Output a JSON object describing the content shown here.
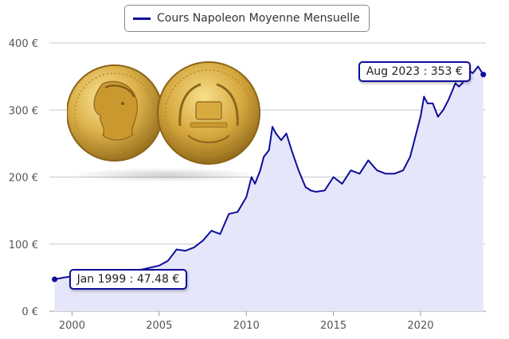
{
  "colors": {
    "line": "#0d0d9a",
    "fill": "#e6e6fb",
    "grid": "#c8c8c8",
    "axis_text": "#555555",
    "gold_light": "#f3d57a",
    "gold_mid": "#d8ac3c",
    "gold_dark": "#9c7420"
  },
  "chart_data": {
    "type": "area",
    "legend": [
      "Cours Napoleon Moyenne Mensuelle"
    ],
    "legend_placement": "top-center",
    "grid": true,
    "xlim": [
      1998.7,
      2023.75
    ],
    "ylim": [
      0,
      400
    ],
    "x_ticks": [
      2000,
      2005,
      2010,
      2015,
      2020
    ],
    "x_tick_labels": [
      "2000",
      "2005",
      "2010",
      "2015",
      "2020"
    ],
    "y_ticks": [
      0,
      100,
      200,
      300,
      400
    ],
    "y_tick_labels": [
      "0 €",
      "100 €",
      "200 €",
      "300 €",
      "400 €"
    ],
    "series": [
      {
        "name": "Cours Napoleon Moyenne Mensuelle",
        "x": [
          1999.0,
          1999.5,
          2000.0,
          2001.0,
          2002.0,
          2003.0,
          2004.0,
          2005.0,
          2005.5,
          2006.0,
          2006.5,
          2007.0,
          2007.5,
          2008.0,
          2008.5,
          2009.0,
          2009.5,
          2010.0,
          2010.3,
          2010.5,
          2010.8,
          2011.0,
          2011.3,
          2011.5,
          2011.7,
          2012.0,
          2012.3,
          2012.6,
          2013.0,
          2013.4,
          2013.7,
          2014.0,
          2014.5,
          2015.0,
          2015.5,
          2016.0,
          2016.5,
          2017.0,
          2017.5,
          2018.0,
          2018.5,
          2019.0,
          2019.4,
          2019.7,
          2020.0,
          2020.2,
          2020.4,
          2020.7,
          2021.0,
          2021.3,
          2021.6,
          2022.0,
          2022.2,
          2022.4,
          2022.7,
          2023.0,
          2023.3,
          2023.6
        ],
        "y": [
          47.48,
          50,
          52,
          55,
          57,
          60,
          62,
          68,
          75,
          92,
          90,
          95,
          105,
          120,
          115,
          145,
          148,
          170,
          200,
          190,
          210,
          230,
          240,
          275,
          265,
          255,
          265,
          240,
          210,
          185,
          180,
          178,
          180,
          200,
          190,
          210,
          205,
          225,
          210,
          205,
          205,
          210,
          230,
          260,
          290,
          320,
          310,
          310,
          290,
          300,
          315,
          340,
          335,
          340,
          360,
          355,
          365,
          353
        ]
      }
    ],
    "annotations": [
      {
        "x": 1999.0,
        "y": 47.48,
        "label": "Jan 1999 : 47.48 €"
      },
      {
        "x": 2023.6,
        "y": 353,
        "label": "Aug 2023 : 353 €"
      }
    ]
  }
}
